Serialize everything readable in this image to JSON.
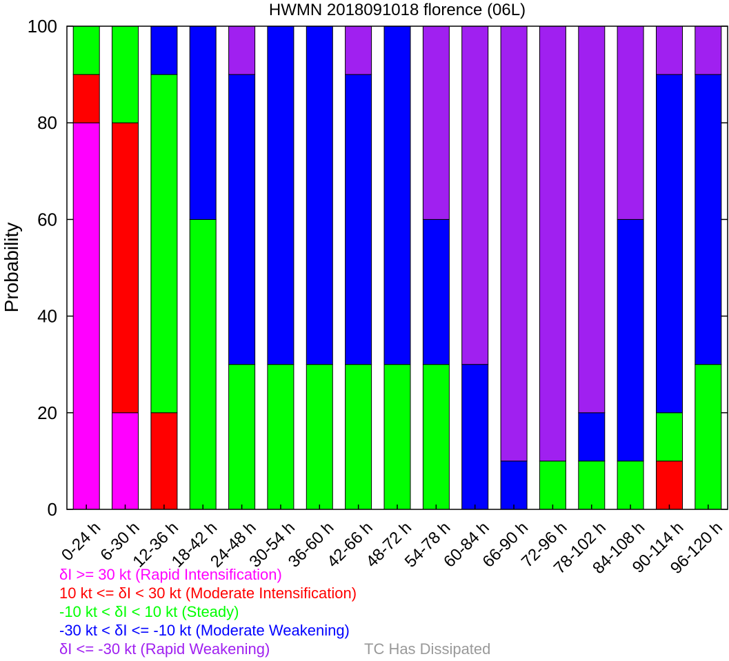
{
  "chart_data": {
    "type": "bar",
    "stacked": true,
    "title": "HWMN 2018091018 florence (06L)",
    "ylabel": "Probability",
    "xlabel": "",
    "ylim": [
      0,
      100
    ],
    "yticks": [
      0,
      20,
      40,
      60,
      80,
      100
    ],
    "grid": false,
    "categories": [
      "0-24 h",
      "6-30 h",
      "12-36 h",
      "18-42 h",
      "24-48 h",
      "30-54 h",
      "36-60 h",
      "42-66 h",
      "48-72 h",
      "54-78 h",
      "60-84 h",
      "66-90 h",
      "72-96 h",
      "78-102 h",
      "84-108 h",
      "90-114 h",
      "96-120 h"
    ],
    "series": [
      {
        "key": "ri",
        "color": "#ff00ff",
        "values": [
          80,
          20,
          0,
          0,
          0,
          0,
          0,
          0,
          0,
          0,
          0,
          0,
          0,
          0,
          0,
          0,
          0
        ]
      },
      {
        "key": "mi",
        "color": "#ff0000",
        "values": [
          10,
          60,
          20,
          0,
          0,
          0,
          0,
          0,
          0,
          0,
          0,
          0,
          0,
          0,
          0,
          10,
          0
        ]
      },
      {
        "key": "st",
        "color": "#00ff00",
        "values": [
          10,
          20,
          70,
          60,
          30,
          30,
          30,
          30,
          30,
          30,
          0,
          0,
          10,
          10,
          10,
          10,
          30
        ]
      },
      {
        "key": "mw",
        "color": "#0000ff",
        "values": [
          0,
          0,
          10,
          40,
          60,
          70,
          70,
          60,
          70,
          30,
          30,
          10,
          0,
          10,
          50,
          70,
          60
        ]
      },
      {
        "key": "rw",
        "color": "#a020f0",
        "values": [
          0,
          0,
          0,
          0,
          10,
          0,
          0,
          10,
          0,
          40,
          70,
          90,
          90,
          80,
          40,
          10,
          10
        ]
      }
    ]
  },
  "legend": [
    {
      "text": "δI >= 30 kt (Rapid Intensification)",
      "color": "#ff00ff"
    },
    {
      "text": "10 kt <= δI < 30 kt (Moderate Intensification)",
      "color": "#ff0000"
    },
    {
      "text": "-10 kt < δI < 10 kt (Steady)",
      "color": "#00ff00"
    },
    {
      "text": "-30 kt < δI <= -10 kt (Moderate Weakening)",
      "color": "#0000ff"
    },
    {
      "text": "δI <= -30 kt (Rapid Weakening)",
      "color": "#a020f0"
    }
  ],
  "dissipated": {
    "text": "TC Has Dissipated",
    "color": "#999999"
  }
}
